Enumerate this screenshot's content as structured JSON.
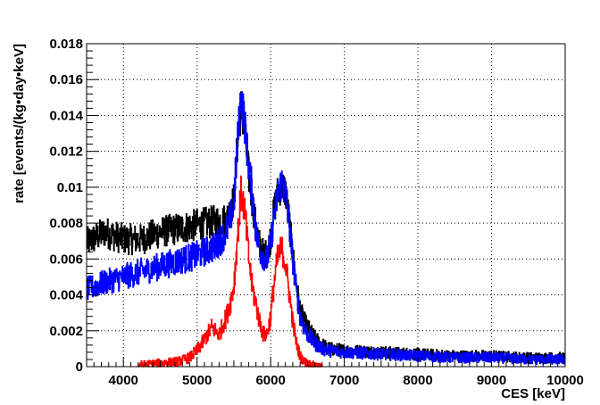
{
  "chart_data": {
    "type": "line",
    "xlabel": "CES [keV]",
    "ylabel": "rate [events/(kg•day•keV]",
    "xlim": [
      3500,
      10000
    ],
    "ylim": [
      0,
      0.018
    ],
    "grid": true,
    "x_ticks": [
      4000,
      5000,
      6000,
      7000,
      8000,
      9000,
      10000
    ],
    "x_tick_labels": [
      "4000",
      "5000",
      "6000",
      "7000",
      "8000",
      "9000",
      "10000"
    ],
    "y_ticks": [
      0,
      0.002,
      0.004,
      0.006,
      0.008,
      0.01,
      0.012,
      0.014,
      0.016,
      0.018
    ],
    "y_tick_labels": [
      "0",
      "0.002",
      "0.004",
      "0.006",
      "0.008",
      "0.01",
      "0.012",
      "0.014",
      "0.016",
      "0.018"
    ],
    "series": [
      {
        "color": "#000000",
        "x": [
          3500,
          3750,
          4000,
          4250,
          4500,
          4750,
          5000,
          5250,
          5400,
          5500,
          5550,
          5600,
          5650,
          5700,
          5750,
          5800,
          5850,
          5900,
          5950,
          6000,
          6050,
          6100,
          6150,
          6200,
          6250,
          6300,
          6350,
          6400,
          6450,
          6500,
          6600,
          6700,
          6800,
          7000,
          7500,
          8000,
          8500,
          9000,
          9500,
          10000
        ],
        "y": [
          0.0069,
          0.0075,
          0.0071,
          0.0071,
          0.0075,
          0.0077,
          0.0079,
          0.0081,
          0.0082,
          0.0093,
          0.0125,
          0.0145,
          0.013,
          0.0108,
          0.0092,
          0.0078,
          0.0068,
          0.0063,
          0.0063,
          0.0072,
          0.0088,
          0.0098,
          0.0101,
          0.0098,
          0.0082,
          0.0063,
          0.0045,
          0.0032,
          0.0026,
          0.0022,
          0.0016,
          0.0012,
          0.001,
          0.0009,
          0.0008,
          0.0007,
          0.0006,
          0.0006,
          0.0005,
          0.0005
        ]
      },
      {
        "color": "#0000ff",
        "x": [
          3500,
          3750,
          4000,
          4250,
          4500,
          4750,
          5000,
          5250,
          5400,
          5500,
          5550,
          5600,
          5650,
          5700,
          5750,
          5800,
          5850,
          5900,
          5950,
          6000,
          6050,
          6100,
          6150,
          6200,
          6250,
          6300,
          6350,
          6400,
          6450,
          6500,
          6600,
          6700,
          6800,
          7000,
          7500,
          8000,
          8500,
          9000,
          9500,
          10000
        ],
        "y": [
          0.0043,
          0.0047,
          0.005,
          0.0053,
          0.0056,
          0.0059,
          0.0062,
          0.0067,
          0.0075,
          0.009,
          0.0125,
          0.0152,
          0.0135,
          0.0112,
          0.0098,
          0.0075,
          0.0065,
          0.0062,
          0.006,
          0.0068,
          0.0085,
          0.0097,
          0.0103,
          0.0097,
          0.008,
          0.006,
          0.0042,
          0.0028,
          0.0022,
          0.0018,
          0.0013,
          0.001,
          0.0009,
          0.0008,
          0.0007,
          0.0006,
          0.0005,
          0.0005,
          0.0004,
          0.0004
        ]
      },
      {
        "color": "#ff0000",
        "x": [
          4200,
          4500,
          4750,
          4900,
          5000,
          5100,
          5200,
          5300,
          5400,
          5450,
          5500,
          5550,
          5600,
          5650,
          5700,
          5750,
          5800,
          5850,
          5900,
          5950,
          6000,
          6050,
          6100,
          6150,
          6200,
          6250,
          6300,
          6350,
          6400,
          6450,
          6500,
          6550,
          6600,
          6650,
          6700
        ],
        "y": [
          0.0001,
          0.0002,
          0.0003,
          0.0005,
          0.0009,
          0.0015,
          0.0022,
          0.0018,
          0.0028,
          0.0035,
          0.0045,
          0.0072,
          0.0098,
          0.0086,
          0.0062,
          0.0044,
          0.0035,
          0.0025,
          0.0018,
          0.0018,
          0.0028,
          0.0048,
          0.0062,
          0.0066,
          0.0058,
          0.0042,
          0.0025,
          0.0013,
          0.0006,
          0.0003,
          0.0002,
          0.0001,
          0.0001,
          0.0,
          0.0
        ]
      }
    ]
  }
}
